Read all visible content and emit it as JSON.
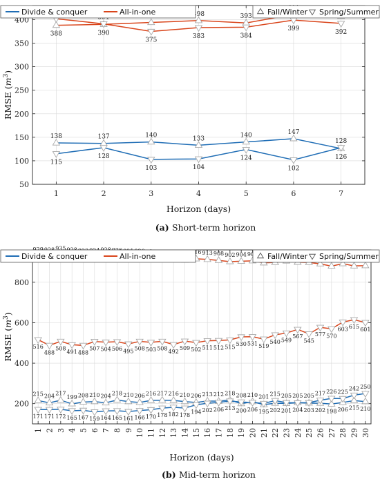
{
  "chart_data": [
    {
      "type": "line",
      "caption_letter": "(a)",
      "caption": "Short-term horizon",
      "xlabel": "Horizon (days)",
      "ylabel": "RMSE (m³)",
      "x": [
        1,
        2,
        3,
        4,
        5,
        6,
        7
      ],
      "xlim": [
        0.5,
        7.5
      ],
      "ylim": [
        50,
        430
      ],
      "yticks": [
        50,
        100,
        150,
        200,
        250,
        300,
        350,
        400
      ],
      "grid": true,
      "legend_left": [
        "Divide & conquer",
        "All-in-one"
      ],
      "legend_right": [
        "Fall/Winter",
        "Spring/Summer"
      ],
      "colors": {
        "divide": "#1f6db5",
        "allinone": "#d9441a",
        "marker": "#a8a8a8"
      },
      "series": [
        {
          "name": "All-in-one",
          "season": "Fall/Winter",
          "values": [
            388,
            390,
            394,
            398,
            393,
            411,
            407
          ]
        },
        {
          "name": "All-in-one",
          "season": "Spring/Summer",
          "values": [
            402,
            391,
            375,
            383,
            384,
            399,
            392
          ]
        },
        {
          "name": "Divide & conquer",
          "season": "Fall/Winter",
          "values": [
            138,
            137,
            140,
            133,
            140,
            147,
            126
          ]
        },
        {
          "name": "Divide & conquer",
          "season": "Spring/Summer",
          "values": [
            115,
            128,
            103,
            104,
            124,
            102,
            128
          ]
        }
      ]
    },
    {
      "type": "line",
      "caption_letter": "(b)",
      "caption": "Mid-term horizon",
      "xlabel": "Horizon (days)",
      "ylabel": "RMSE (m³)",
      "x": [
        1,
        2,
        3,
        4,
        5,
        6,
        7,
        8,
        9,
        10,
        11,
        12,
        13,
        14,
        15,
        16,
        17,
        18,
        19,
        20,
        21,
        22,
        23,
        24,
        25,
        26,
        27,
        28,
        29,
        30
      ],
      "xlim": [
        0.5,
        30.5
      ],
      "ylim": [
        100,
        960
      ],
      "yticks": [
        200,
        400,
        600,
        800
      ],
      "grid": true,
      "legend_left": [
        "Divide & conquer",
        "All-in-one"
      ],
      "legend_right": [
        "Fall/Winter",
        "Spring/Summer"
      ],
      "colors": {
        "divide": "#1f6db5",
        "allinone": "#d9441a",
        "marker": "#a8a8a8"
      },
      "series": [
        {
          "name": "All-in-one",
          "season": "Fall/Winter",
          "values": [
            929,
            928,
            935,
            928,
            923,
            924,
            928,
            926,
            921,
            920,
            917,
            914,
            916,
            910,
            916,
            913,
            908,
            902,
            904,
            906,
            896,
            898,
            905,
            899,
            898,
            891,
            880,
            892,
            881,
            882
          ]
        },
        {
          "name": "All-in-one",
          "season": "Spring/Summer",
          "values": [
            516,
            488,
            508,
            491,
            488,
            507,
            504,
            506,
            495,
            508,
            503,
            508,
            492,
            509,
            502,
            511,
            512,
            515,
            530,
            531,
            519,
            540,
            549,
            567,
            545,
            577,
            570,
            603,
            615,
            601
          ]
        },
        {
          "name": "Divide & conquer",
          "season": "Fall/Winter",
          "values": [
            215,
            204,
            217,
            199,
            208,
            210,
            204,
            218,
            210,
            206,
            216,
            217,
            216,
            210,
            206,
            213,
            212,
            218,
            200,
            210,
            195,
            202,
            201,
            205,
            203,
            202,
            198,
            206,
            215,
            210
          ]
        },
        {
          "name": "Divide & conquer",
          "season": "Spring/Summer",
          "values": [
            171,
            171,
            172,
            165,
            167,
            159,
            164,
            165,
            161,
            166,
            170,
            178,
            182,
            178,
            194,
            202,
            206,
            213,
            208,
            206,
            201,
            215,
            205,
            204,
            205,
            217,
            226,
            225,
            242,
            250
          ]
        }
      ]
    }
  ]
}
